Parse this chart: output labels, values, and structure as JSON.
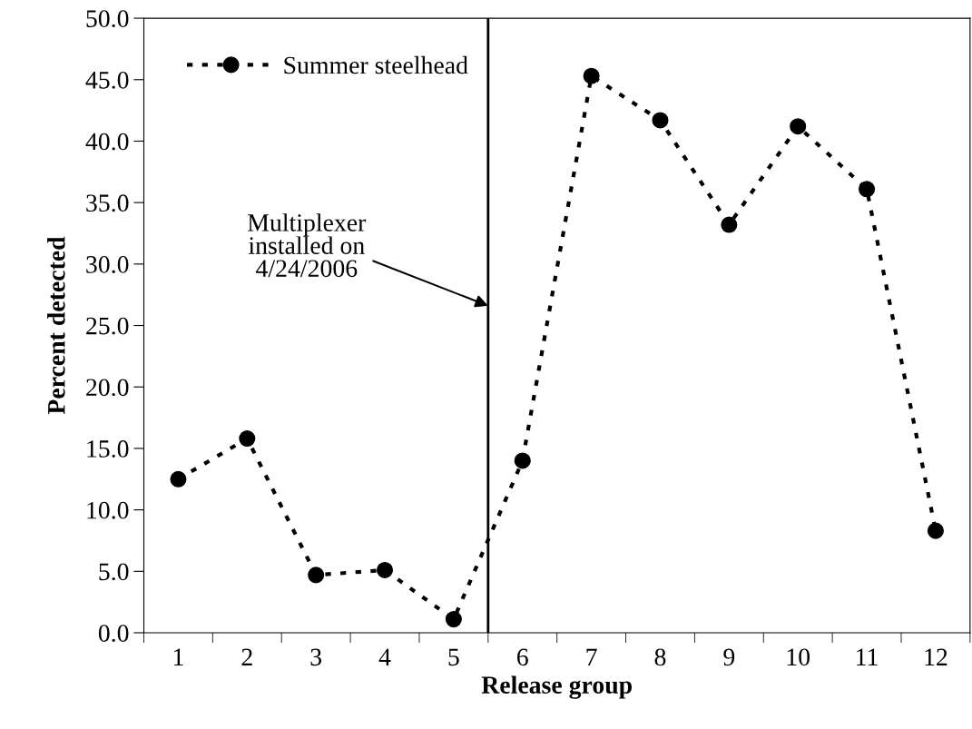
{
  "chart_data": {
    "type": "line",
    "xlabel": "Release group",
    "ylabel": "Percent detected",
    "x": [
      1,
      2,
      3,
      4,
      5,
      6,
      7,
      8,
      9,
      10,
      11,
      12
    ],
    "series": [
      {
        "name": "Summer steelhead",
        "color": "#000000",
        "values": [
          12.5,
          15.8,
          4.7,
          5.1,
          1.1,
          14.0,
          45.3,
          41.7,
          33.2,
          41.2,
          36.1,
          8.3
        ]
      }
    ],
    "xlim": [
      0.5,
      12.5
    ],
    "xticks": [
      1,
      2,
      3,
      4,
      5,
      6,
      7,
      8,
      9,
      10,
      11,
      12,
      {
        "value": 0.5,
        "label": null
      },
      {
        "value": 1.5,
        "label": null
      },
      {
        "value": 2.5,
        "label": null
      },
      {
        "value": 3.5,
        "label": null
      },
      {
        "value": 4.5,
        "label": null
      },
      {
        "value": 5.5,
        "label": null
      },
      {
        "value": 6.5,
        "label": null
      },
      {
        "value": 7.5,
        "label": null
      },
      {
        "value": 8.5,
        "label": null
      },
      {
        "value": 9.5,
        "label": null
      },
      {
        "value": 10.5,
        "label": null
      },
      {
        "value": 11.5,
        "label": null
      },
      {
        "value": 12.5,
        "label": null
      }
    ],
    "ylim": [
      0,
      50
    ],
    "yticks": [
      {
        "value": 0,
        "label": "0.0"
      },
      {
        "value": 5,
        "label": "5.0"
      },
      {
        "value": 10,
        "label": "10.0"
      },
      {
        "value": 15,
        "label": "15.0"
      },
      {
        "value": 20,
        "label": "20.0"
      },
      {
        "value": 25,
        "label": "25.0"
      },
      {
        "value": 30,
        "label": "30.0"
      },
      {
        "value": 35,
        "label": "35.0"
      },
      {
        "value": 40,
        "label": "40.0"
      },
      {
        "value": 45,
        "label": "45.0"
      },
      {
        "value": 50,
        "label": "50.0"
      }
    ],
    "ref_lines": [
      {
        "axis": "x",
        "value": 5.5,
        "color": "#000000",
        "line_style": "solid"
      }
    ],
    "annotations": [
      {
        "text": "Multiplexer\ninstalled on\n4/24/2006",
        "x": 5.5,
        "y": 26.6
      }
    ],
    "marker": "circle",
    "line_style": "dotted",
    "legend": "top left",
    "grid": false
  }
}
